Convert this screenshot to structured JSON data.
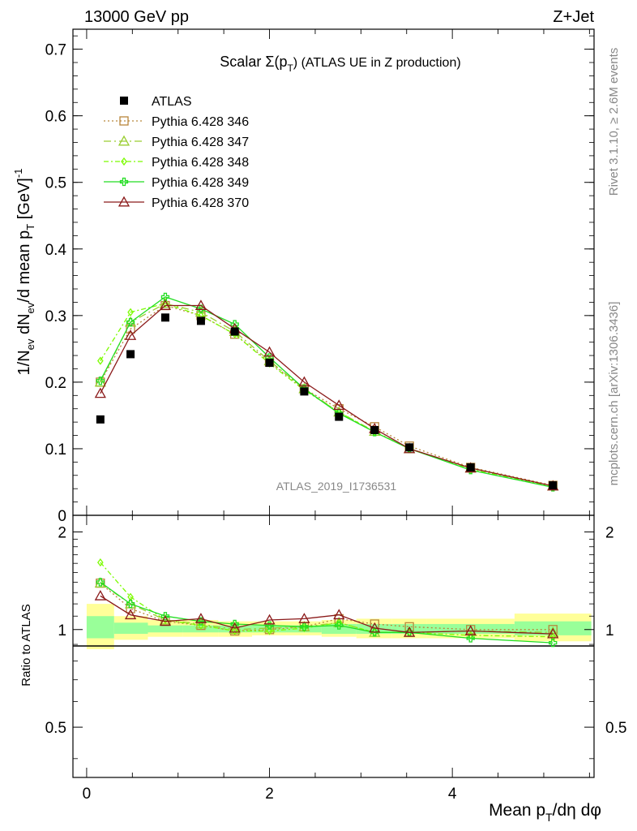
{
  "header": {
    "energy": "13000 GeV pp",
    "process": "Z+Jet"
  },
  "side": {
    "rivet": "Rivet 3.1.10, ≥ 2.6M events",
    "mcplots": "mcplots.cern.ch [arXiv:1306.3436]"
  },
  "chart_data": [
    {
      "type": "line",
      "title": "Scalar Σ(p_T) (ATLAS UE in Z production)",
      "title_main": "Scalar Σ(p",
      "title_sub": "T",
      "title_rest": ") (ATLAS UE in Z production)",
      "ylabel": "1/N_ev dN_ev/d mean p_T [GeV]^-1",
      "analysis_tag": "ATLAS_2019_I1736531",
      "xlim": [
        -0.15,
        5.55
      ],
      "ylim": [
        0,
        0.73
      ],
      "yticks": [
        0,
        0.1,
        0.2,
        0.3,
        0.4,
        0.5,
        0.6,
        0.7
      ],
      "ytick_labels": [
        "0",
        "0.1",
        "0.2",
        "0.3",
        "0.4",
        "0.5",
        "0.6",
        "0.7"
      ],
      "x": [
        0.15,
        0.48,
        0.86,
        1.25,
        1.62,
        2.0,
        2.38,
        2.76,
        3.15,
        3.53,
        4.2,
        5.1
      ],
      "data": {
        "name": "ATLAS",
        "color": "#000000",
        "marker": "square",
        "values": [
          0.144,
          0.242,
          0.297,
          0.292,
          0.276,
          0.229,
          0.186,
          0.148,
          0.128,
          0.102,
          0.072,
          0.045
        ]
      },
      "series": [
        {
          "name": "Pythia 6.428 346",
          "color": "#b8863b",
          "dash": "2,3",
          "marker": "square-open",
          "values": [
            0.2,
            0.28,
            0.315,
            0.3,
            0.272,
            0.23,
            0.19,
            0.16,
            0.133,
            0.104,
            0.072,
            0.045
          ]
        },
        {
          "name": "Pythia 6.428 347",
          "color": "#9acd32",
          "dash": "9,4,2,4",
          "marker": "triangle-open",
          "values": [
            0.2,
            0.29,
            0.318,
            0.305,
            0.276,
            0.232,
            0.19,
            0.155,
            0.126,
            0.1,
            0.071,
            0.044
          ]
        },
        {
          "name": "Pythia 6.428 348",
          "color": "#7cfc00",
          "dash": "6,3,2,3",
          "marker": "diamond-open",
          "values": [
            0.232,
            0.305,
            0.318,
            0.3,
            0.272,
            0.228,
            0.188,
            0.155,
            0.125,
            0.1,
            0.069,
            0.043
          ]
        },
        {
          "name": "Pythia 6.428 349",
          "color": "#22dd22",
          "dash": "",
          "marker": "cross-open",
          "values": [
            0.202,
            0.29,
            0.328,
            0.31,
            0.287,
            0.237,
            0.19,
            0.153,
            0.125,
            0.1,
            0.068,
            0.042
          ]
        },
        {
          "name": "Pythia 6.428 370",
          "color": "#8b1a1a",
          "dash": "",
          "marker": "triangle-open",
          "values": [
            0.183,
            0.27,
            0.315,
            0.315,
            0.28,
            0.245,
            0.2,
            0.165,
            0.13,
            0.1,
            0.071,
            0.044
          ]
        }
      ]
    },
    {
      "type": "line",
      "title": "",
      "ylabel": "Ratio to ATLAS",
      "xlabel": "Mean p_T/dη dφ",
      "xlim": [
        -0.15,
        5.55
      ],
      "ylim": [
        0.35,
        2.25
      ],
      "yticks": [
        0.5,
        1,
        2
      ],
      "ytick_labels": [
        "0.5",
        "1",
        "2"
      ],
      "xticks": [
        0,
        2,
        4
      ],
      "xtick_labels": [
        "0",
        "2",
        "4"
      ],
      "x": [
        0.15,
        0.48,
        0.86,
        1.25,
        1.62,
        2.0,
        2.38,
        2.76,
        3.15,
        3.53,
        4.2,
        5.1
      ],
      "band_edges": [
        0.0,
        0.3,
        0.67,
        1.05,
        1.44,
        1.81,
        2.19,
        2.57,
        2.95,
        3.34,
        3.72,
        4.68,
        5.52
      ],
      "band_yellow": [
        [
          0.87,
          1.2
        ],
        [
          0.93,
          1.1
        ],
        [
          0.95,
          1.07
        ],
        [
          0.95,
          1.07
        ],
        [
          0.95,
          1.06
        ],
        [
          0.96,
          1.06
        ],
        [
          0.96,
          1.06
        ],
        [
          0.95,
          1.07
        ],
        [
          0.94,
          1.08
        ],
        [
          0.94,
          1.08
        ],
        [
          0.94,
          1.08
        ],
        [
          0.92,
          1.12
        ]
      ],
      "band_green": [
        [
          0.94,
          1.1
        ],
        [
          0.97,
          1.05
        ],
        [
          0.98,
          1.03
        ],
        [
          0.98,
          1.03
        ],
        [
          0.98,
          1.03
        ],
        [
          0.98,
          1.03
        ],
        [
          0.98,
          1.03
        ],
        [
          0.97,
          1.04
        ],
        [
          0.97,
          1.04
        ],
        [
          0.97,
          1.04
        ],
        [
          0.97,
          1.04
        ],
        [
          0.96,
          1.06
        ]
      ],
      "series": [
        {
          "name": "Pythia 6.428 346",
          "color": "#b8863b",
          "dash": "2,3",
          "marker": "square-open",
          "values": [
            1.39,
            1.16,
            1.06,
            1.03,
            0.99,
            1.0,
            1.02,
            1.08,
            1.04,
            1.02,
            1.0,
            1.0
          ]
        },
        {
          "name": "Pythia 6.428 347",
          "color": "#9acd32",
          "dash": "9,4,2,4",
          "marker": "triangle-open",
          "values": [
            1.39,
            1.2,
            1.07,
            1.04,
            1.0,
            1.01,
            1.02,
            1.05,
            0.98,
            0.98,
            0.99,
            0.98
          ]
        },
        {
          "name": "Pythia 6.428 348",
          "color": "#7cfc00",
          "dash": "6,3,2,3",
          "marker": "diamond-open",
          "values": [
            1.61,
            1.26,
            1.07,
            1.03,
            0.99,
            0.99,
            1.01,
            1.05,
            0.98,
            0.98,
            0.96,
            0.95
          ]
        },
        {
          "name": "Pythia 6.428 349",
          "color": "#22dd22",
          "dash": "",
          "marker": "cross-open",
          "values": [
            1.4,
            1.2,
            1.1,
            1.06,
            1.04,
            1.03,
            1.02,
            1.03,
            0.98,
            0.98,
            0.94,
            0.91
          ]
        },
        {
          "name": "Pythia 6.428 370",
          "color": "#8b1a1a",
          "dash": "",
          "marker": "triangle-open",
          "values": [
            1.27,
            1.11,
            1.06,
            1.08,
            1.01,
            1.07,
            1.08,
            1.11,
            1.01,
            0.98,
            0.99,
            0.97
          ]
        }
      ]
    }
  ]
}
